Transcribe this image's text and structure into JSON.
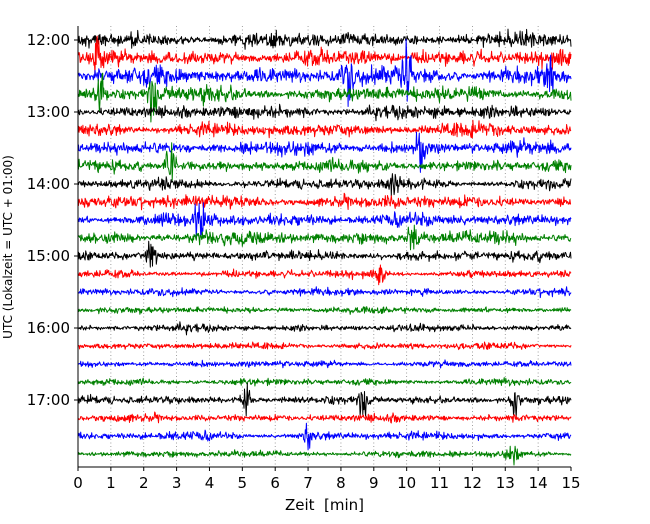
{
  "chart_data": {
    "type": "line",
    "subtype": "helicorder",
    "xlabel": "Zeit  [min]",
    "ylabel": "UTC (Lokalzeit = UTC + 01:00)",
    "xlim": [
      0,
      15
    ],
    "x_ticks": [
      "0",
      "1",
      "2",
      "3",
      "4",
      "5",
      "6",
      "7",
      "8",
      "9",
      "10",
      "11",
      "12",
      "13",
      "14",
      "15"
    ],
    "y_ticks": [
      "12:00",
      "13:00",
      "14:00",
      "15:00",
      "16:00",
      "17:00"
    ],
    "grid": "vertical dotted at each minute",
    "color_cycle": [
      "#000000",
      "#ff0000",
      "#0000ff",
      "#008000"
    ],
    "traces": [
      {
        "start": "12:00",
        "amplitude": 1.0
      },
      {
        "start": "12:15",
        "amplitude": 1.1
      },
      {
        "start": "12:30",
        "amplitude": 1.2
      },
      {
        "start": "12:45",
        "amplitude": 1.0
      },
      {
        "start": "13:00",
        "amplitude": 0.9
      },
      {
        "start": "13:15",
        "amplitude": 0.9
      },
      {
        "start": "13:30",
        "amplitude": 0.9
      },
      {
        "start": "13:45",
        "amplitude": 0.8
      },
      {
        "start": "14:00",
        "amplitude": 0.7
      },
      {
        "start": "14:15",
        "amplitude": 0.9
      },
      {
        "start": "14:30",
        "amplitude": 0.9
      },
      {
        "start": "14:45",
        "amplitude": 0.9
      },
      {
        "start": "15:00",
        "amplitude": 0.7
      },
      {
        "start": "15:15",
        "amplitude": 0.5
      },
      {
        "start": "15:30",
        "amplitude": 0.5
      },
      {
        "start": "15:45",
        "amplitude": 0.45
      },
      {
        "start": "16:00",
        "amplitude": 0.5
      },
      {
        "start": "16:15",
        "amplitude": 0.45
      },
      {
        "start": "16:30",
        "amplitude": 0.45
      },
      {
        "start": "16:45",
        "amplitude": 0.45
      },
      {
        "start": "17:00",
        "amplitude": 0.55
      },
      {
        "start": "17:15",
        "amplitude": 0.55
      },
      {
        "start": "17:30",
        "amplitude": 0.55
      },
      {
        "start": "17:45",
        "amplitude": 0.45
      }
    ],
    "events": [
      {
        "trace": 1,
        "minute": 0.6,
        "amplitude": 2.5
      },
      {
        "trace": 3,
        "minute": 0.7,
        "amplitude": 4.0
      },
      {
        "trace": 3,
        "minute": 2.3,
        "amplitude": 3.0
      },
      {
        "trace": 2,
        "minute": 8.2,
        "amplitude": 3.0
      },
      {
        "trace": 2,
        "minute": 10.0,
        "amplitude": 3.0
      },
      {
        "trace": 2,
        "minute": 14.4,
        "amplitude": 2.5
      },
      {
        "trace": 6,
        "minute": 10.4,
        "amplitude": 3.0
      },
      {
        "trace": 7,
        "minute": 2.8,
        "amplitude": 3.0
      },
      {
        "trace": 8,
        "minute": 9.6,
        "amplitude": 2.0
      },
      {
        "trace": 10,
        "minute": 3.7,
        "amplitude": 3.0
      },
      {
        "trace": 11,
        "minute": 10.2,
        "amplitude": 2.0
      },
      {
        "trace": 12,
        "minute": 2.2,
        "amplitude": 2.0
      },
      {
        "trace": 13,
        "minute": 9.2,
        "amplitude": 1.5
      },
      {
        "trace": 20,
        "minute": 5.1,
        "amplitude": 1.8
      },
      {
        "trace": 20,
        "minute": 8.7,
        "amplitude": 2.2
      },
      {
        "trace": 20,
        "minute": 13.3,
        "amplitude": 2.0
      },
      {
        "trace": 22,
        "minute": 7.0,
        "amplitude": 1.5
      },
      {
        "trace": 23,
        "minute": 13.2,
        "amplitude": 1.5
      }
    ]
  }
}
